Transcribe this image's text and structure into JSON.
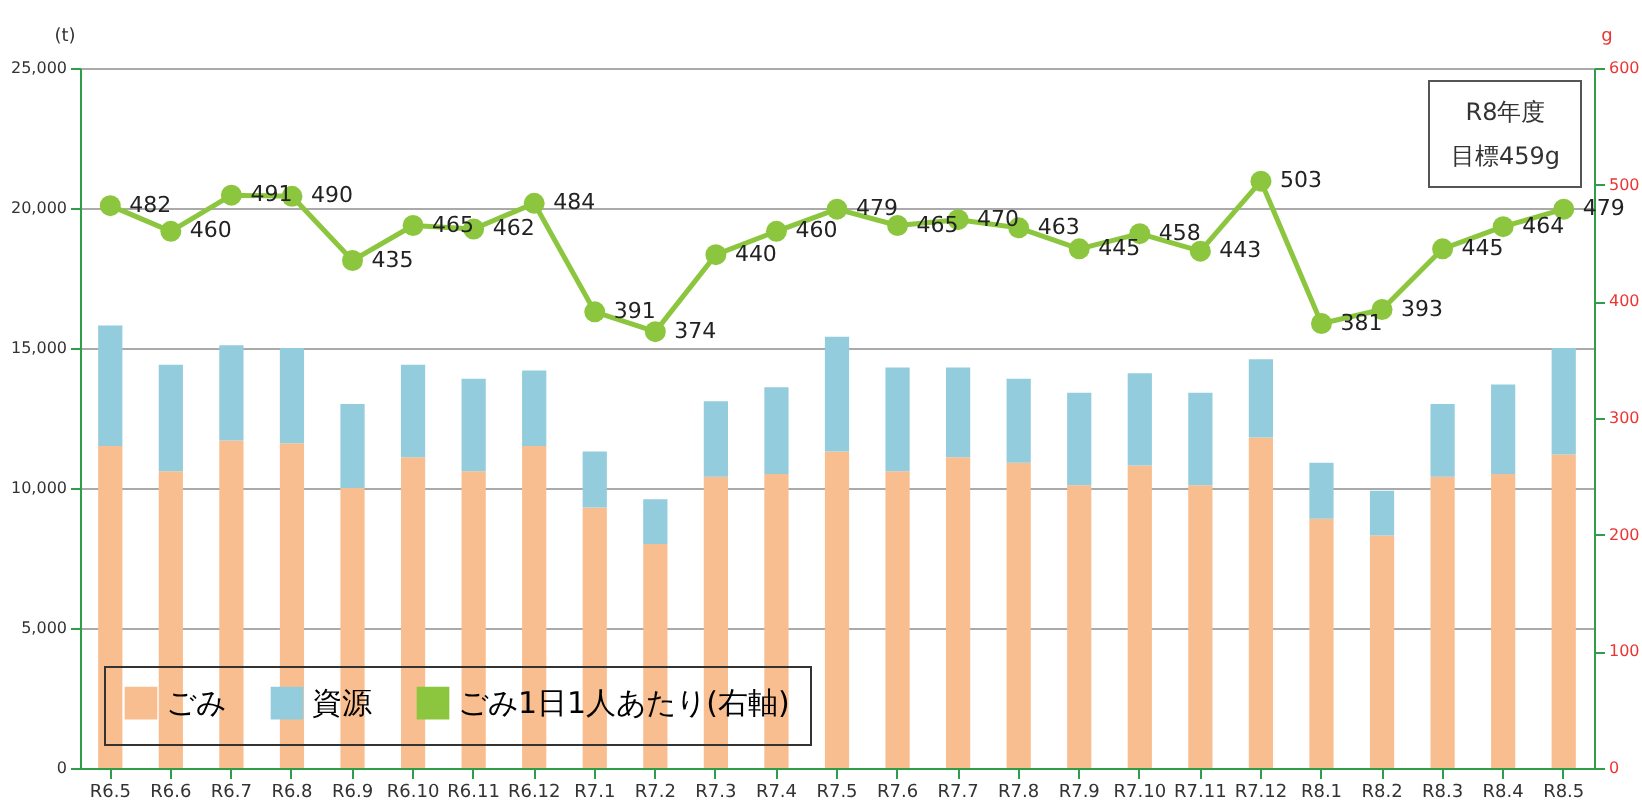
{
  "chart_data": {
    "type": "bar",
    "stacked": true,
    "categories": [
      "R6.5",
      "R6.6",
      "R6.7",
      "R6.8",
      "R6.9",
      "R6.10",
      "R6.11",
      "R6.12",
      "R7.1",
      "R7.2",
      "R7.3",
      "R7.4",
      "R7.5",
      "R7.6",
      "R7.7",
      "R7.8",
      "R7.9",
      "R7.10",
      "R7.11",
      "R7.12",
      "R8.1",
      "R8.2",
      "R8.3",
      "R8.4",
      "R8.5"
    ],
    "ylabel": "(t)",
    "y2label": "g",
    "ylim": [
      0,
      25000
    ],
    "yticks": [
      0,
      {
        "value": 5000,
        "label": "5,000"
      },
      {
        "value": 10000,
        "label": "10,000"
      },
      {
        "value": 15000,
        "label": "15,000"
      },
      {
        "value": 20000,
        "label": "20,000"
      },
      {
        "value": 25000,
        "label": "25,000"
      }
    ],
    "y2lim": [
      0,
      600
    ],
    "y2ticks": [
      0,
      100,
      200,
      300,
      400,
      500,
      600
    ],
    "grid": "y",
    "legend": "bottom left",
    "series": [
      {
        "name": "ごみ",
        "color": "#f9be8f",
        "values": [
          11500,
          10600,
          11700,
          11600,
          10000,
          11100,
          10600,
          11500,
          9300,
          8000,
          10400,
          10500,
          11300,
          10600,
          11100,
          10900,
          10100,
          10800,
          10100,
          11800,
          8900,
          8300,
          10400,
          10500,
          11200
        ]
      },
      {
        "name": "資源",
        "color": "#93cddd",
        "values": [
          4300,
          3800,
          3400,
          3400,
          3000,
          3300,
          3300,
          2700,
          2000,
          1600,
          2700,
          3100,
          4100,
          3700,
          3200,
          3000,
          3300,
          3300,
          3300,
          2800,
          2000,
          1600,
          2600,
          3200,
          3800
        ]
      },
      {
        "name": "ごみ1日1人あたり(右軸)",
        "type": "line",
        "axis": "y2",
        "color": "#8cc63f",
        "marker": "circle",
        "data_labels": true,
        "values": [
          482,
          460,
          491,
          490,
          435,
          465,
          462,
          484,
          391,
          374,
          440,
          460,
          479,
          465,
          470,
          463,
          445,
          458,
          443,
          503,
          381,
          393,
          445,
          464,
          479
        ]
      }
    ],
    "annotations": [
      "R8年度",
      "目標459g"
    ]
  }
}
